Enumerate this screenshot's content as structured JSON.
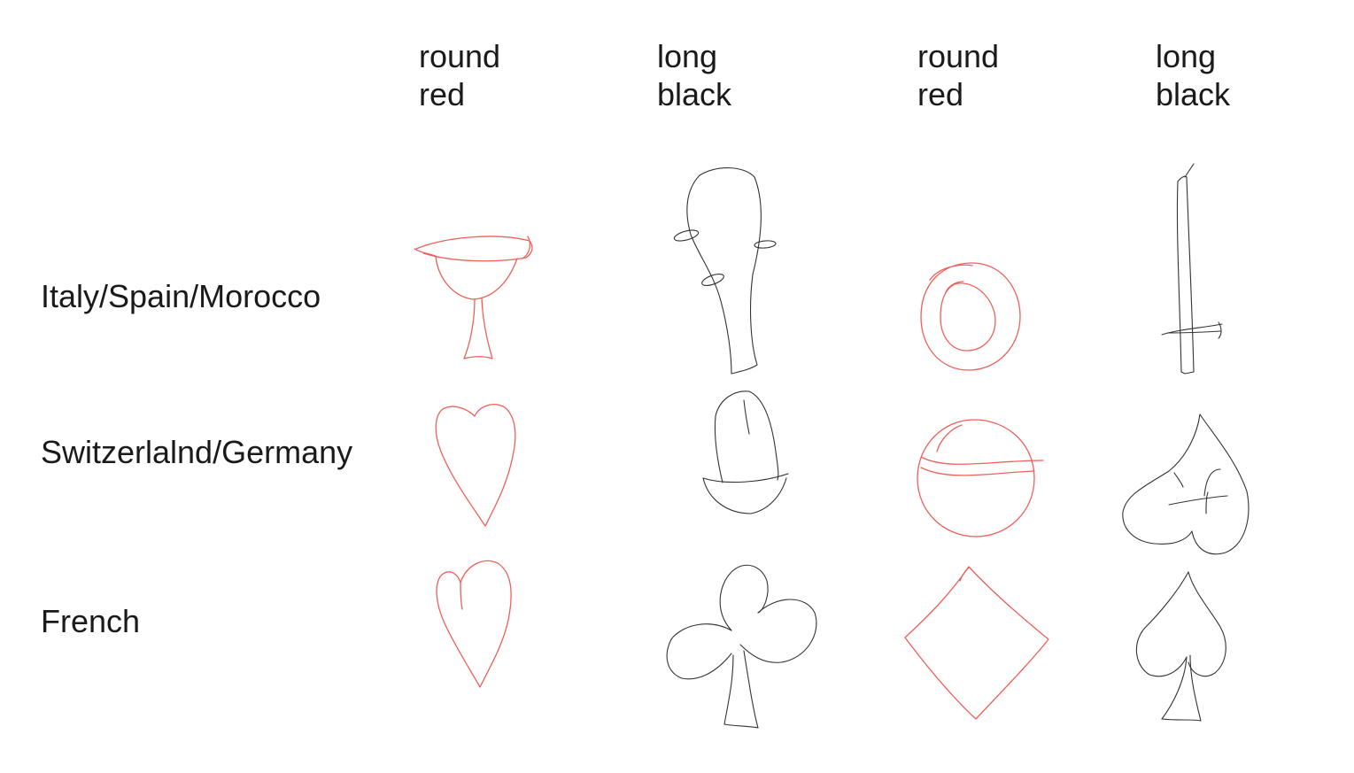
{
  "columns": [
    {
      "shape": "round",
      "color": "red"
    },
    {
      "shape": "long",
      "color": "black"
    },
    {
      "shape": "round",
      "color": "red"
    },
    {
      "shape": "long",
      "color": "black"
    }
  ],
  "rows": [
    {
      "label": "Italy/Spain/Morocco",
      "suits": [
        "cups-icon",
        "clubs-baton-icon",
        "coins-icon",
        "swords-icon"
      ]
    },
    {
      "label": "Switzerlalnd/Germany",
      "suits": [
        "hearts-icon",
        "acorns-icon",
        "bells-icon",
        "leaves-icon"
      ]
    },
    {
      "label": "French",
      "suits": [
        "hearts-icon",
        "clubs-icon",
        "diamonds-icon",
        "spades-icon"
      ]
    }
  ],
  "colors": {
    "red": "#f0605a",
    "black": "#333333"
  }
}
